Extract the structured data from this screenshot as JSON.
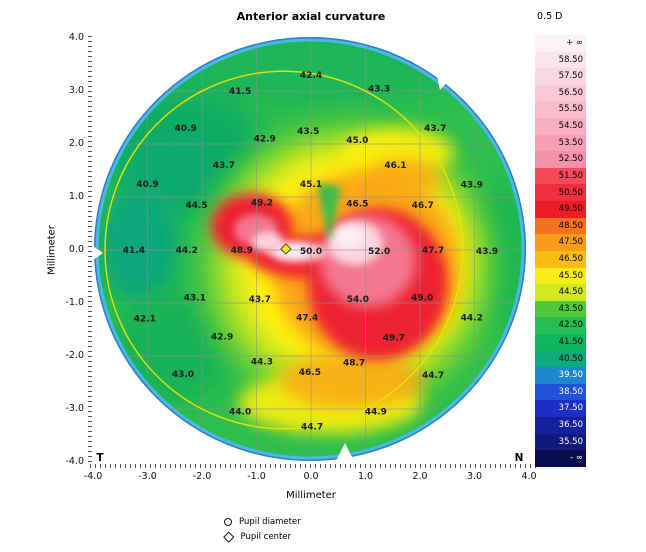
{
  "header": {
    "title": "Anterior axial curvature",
    "scale_step": "0.5 D"
  },
  "axes": {
    "x_label": "Millimeter",
    "y_label": "Millimeter",
    "x_ticks": [
      "-4.0",
      "-3.0",
      "-2.0",
      "-1.0",
      "0.0",
      "1.0",
      "2.0",
      "3.0",
      "4.0"
    ],
    "y_ticks": [
      "4.0",
      "3.0",
      "2.0",
      "1.0",
      "0.0",
      "-1.0",
      "-2.0",
      "-3.0",
      "-4.0"
    ]
  },
  "orientation": {
    "temporal": "T",
    "nasal": "N"
  },
  "colorbar": {
    "rows": [
      {
        "label": "+ ∞",
        "color": "#fdf2f6",
        "text": "#000000"
      },
      {
        "label": "58.50",
        "color": "#fce4ed",
        "text": "#000000"
      },
      {
        "label": "57.50",
        "color": "#fbd7e2",
        "text": "#000000"
      },
      {
        "label": "56.50",
        "color": "#fac9d7",
        "text": "#000000"
      },
      {
        "label": "55.50",
        "color": "#f9bccc",
        "text": "#000000"
      },
      {
        "label": "54.50",
        "color": "#f8aec1",
        "text": "#000000"
      },
      {
        "label": "53.50",
        "color": "#f6a0b5",
        "text": "#000000"
      },
      {
        "label": "52.50",
        "color": "#f591aa",
        "text": "#000000"
      },
      {
        "label": "51.50",
        "color": "#f24a5b",
        "text": "#000000"
      },
      {
        "label": "50.50",
        "color": "#ef2f40",
        "text": "#000000"
      },
      {
        "label": "49.50",
        "color": "#ee1c25",
        "text": "#000000"
      },
      {
        "label": "48.50",
        "color": "#f4711d",
        "text": "#000000"
      },
      {
        "label": "47.50",
        "color": "#f99c1b",
        "text": "#000000"
      },
      {
        "label": "46.50",
        "color": "#fbbd12",
        "text": "#000000"
      },
      {
        "label": "45.50",
        "color": "#f8ee16",
        "text": "#000000"
      },
      {
        "label": "44.50",
        "color": "#cfe81f",
        "text": "#000000"
      },
      {
        "label": "43.50",
        "color": "#52c83e",
        "text": "#000000"
      },
      {
        "label": "42.50",
        "color": "#23bf52",
        "text": "#000000"
      },
      {
        "label": "41.50",
        "color": "#10b55f",
        "text": "#000000"
      },
      {
        "label": "40.50",
        "color": "#0cab7c",
        "text": "#000000"
      },
      {
        "label": "39.50",
        "color": "#1d86cd",
        "text": "#ffffff"
      },
      {
        "label": "38.50",
        "color": "#2152d8",
        "text": "#ffffff"
      },
      {
        "label": "37.50",
        "color": "#1c2fc4",
        "text": "#ffffff"
      },
      {
        "label": "36.50",
        "color": "#15209b",
        "text": "#ffffff"
      },
      {
        "label": "35.50",
        "color": "#101a78",
        "text": "#ffffff"
      },
      {
        "label": "- ∞",
        "color": "#0a0d4d",
        "text": "#ffffff"
      }
    ]
  },
  "pupil_legend": [
    {
      "symbol": "circle",
      "label": "Pupil diameter"
    },
    {
      "symbol": "diamond",
      "label": "Pupil center"
    }
  ],
  "chart_data": {
    "type": "heatmap",
    "title": "Anterior axial curvature",
    "unit": "D",
    "scale_step_d": 0.5,
    "xlabel": "Millimeter",
    "ylabel": "Millimeter",
    "xlim": [
      -4.0,
      4.0
    ],
    "ylim": [
      -4.0,
      4.0
    ],
    "colorbar_labels": [
      "+ ∞",
      "58.50",
      "57.50",
      "56.50",
      "55.50",
      "54.50",
      "53.50",
      "52.50",
      "51.50",
      "50.50",
      "49.50",
      "48.50",
      "47.50",
      "46.50",
      "45.50",
      "44.50",
      "43.50",
      "42.50",
      "41.50",
      "40.50",
      "39.50",
      "38.50",
      "37.50",
      "36.50",
      "35.50",
      "- ∞"
    ],
    "points": [
      {
        "x": 0.0,
        "y": 3.3,
        "v": 42.4
      },
      {
        "x": 1.25,
        "y": 3.05,
        "v": 43.3
      },
      {
        "x": -1.3,
        "y": 3.0,
        "v": 41.5
      },
      {
        "x": -2.3,
        "y": 2.3,
        "v": 40.9
      },
      {
        "x": -0.05,
        "y": 2.25,
        "v": 43.5
      },
      {
        "x": -0.85,
        "y": 2.1,
        "v": 42.9
      },
      {
        "x": 0.85,
        "y": 2.08,
        "v": 45.0
      },
      {
        "x": 2.28,
        "y": 2.3,
        "v": 43.7
      },
      {
        "x": -1.6,
        "y": 1.6,
        "v": 43.7
      },
      {
        "x": 1.55,
        "y": 1.6,
        "v": 46.1
      },
      {
        "x": -3.0,
        "y": 1.25,
        "v": 40.9
      },
      {
        "x": 0.0,
        "y": 1.25,
        "v": 45.1
      },
      {
        "x": 2.95,
        "y": 1.24,
        "v": 43.9
      },
      {
        "x": -2.1,
        "y": 0.85,
        "v": 44.5
      },
      {
        "x": -0.9,
        "y": 0.9,
        "v": 49.2
      },
      {
        "x": 0.85,
        "y": 0.88,
        "v": 46.5
      },
      {
        "x": 2.05,
        "y": 0.85,
        "v": 46.7
      },
      {
        "x": -3.25,
        "y": 0.0,
        "v": 41.4
      },
      {
        "x": -2.28,
        "y": 0.0,
        "v": 44.2
      },
      {
        "x": -1.27,
        "y": 0.0,
        "v": 48.9
      },
      {
        "x": 0.0,
        "y": -0.02,
        "v": 50.0
      },
      {
        "x": 1.25,
        "y": -0.02,
        "v": 52.0
      },
      {
        "x": 2.24,
        "y": 0.0,
        "v": 47.7
      },
      {
        "x": 3.23,
        "y": -0.02,
        "v": 43.9
      },
      {
        "x": -2.13,
        "y": -0.9,
        "v": 43.1
      },
      {
        "x": -0.94,
        "y": -0.92,
        "v": 43.7
      },
      {
        "x": 0.86,
        "y": -0.92,
        "v": 54.0
      },
      {
        "x": 2.04,
        "y": -0.9,
        "v": 49.0
      },
      {
        "x": -3.05,
        "y": -1.29,
        "v": 42.1
      },
      {
        "x": -0.07,
        "y": -1.27,
        "v": 47.4
      },
      {
        "x": 2.95,
        "y": -1.27,
        "v": 44.2
      },
      {
        "x": -1.63,
        "y": -1.63,
        "v": 42.9
      },
      {
        "x": 1.52,
        "y": -1.65,
        "v": 49.7
      },
      {
        "x": -0.9,
        "y": -2.1,
        "v": 44.3
      },
      {
        "x": 0.79,
        "y": -2.12,
        "v": 48.7
      },
      {
        "x": -2.35,
        "y": -2.34,
        "v": 43.0
      },
      {
        "x": -0.02,
        "y": -2.3,
        "v": 46.5
      },
      {
        "x": 2.24,
        "y": -2.36,
        "v": 44.7
      },
      {
        "x": -1.3,
        "y": -3.05,
        "v": 44.0
      },
      {
        "x": 1.19,
        "y": -3.05,
        "v": 44.9
      },
      {
        "x": 0.02,
        "y": -3.33,
        "v": 44.7
      }
    ],
    "pupil": {
      "center": [
        -0.46,
        0.02
      ],
      "circle_center": [
        -0.5,
        0.0
      ],
      "circle_radius_mm": 3.28
    },
    "grid": "on",
    "legend_position": "right"
  }
}
